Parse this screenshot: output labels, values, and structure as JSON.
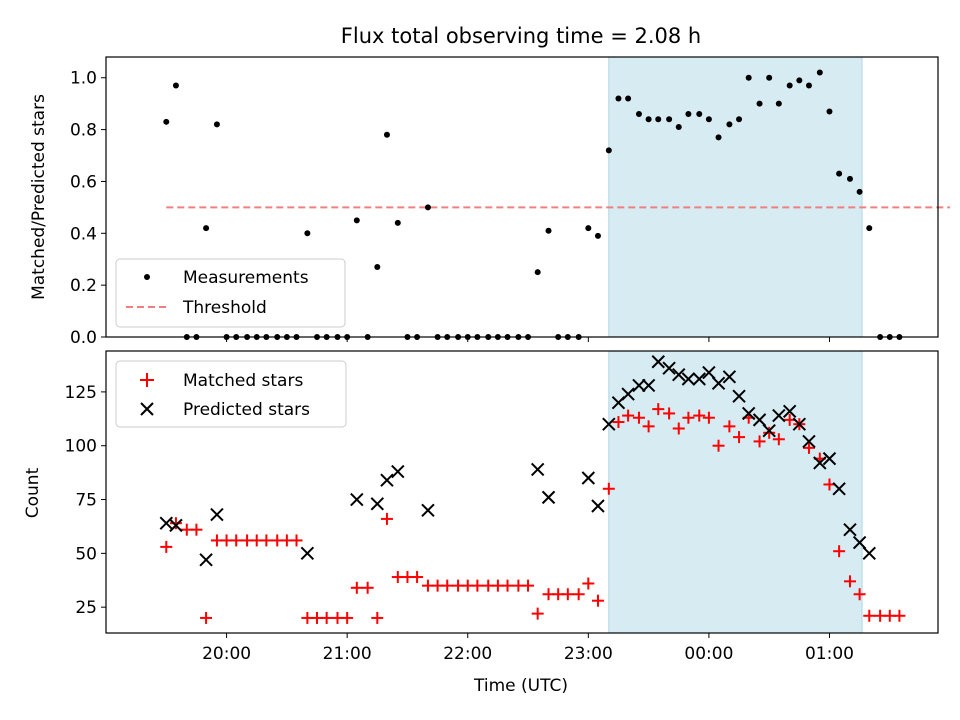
{
  "chart_data": [
    {
      "type": "scatter",
      "panel": "top",
      "title": "Flux total observing time = 2.08 h",
      "ylabel": "Matched/Predicted stars",
      "ylim": [
        0,
        1.08
      ],
      "yticks": [
        "0.0",
        "0.2",
        "0.4",
        "0.6",
        "0.8",
        "1.0"
      ],
      "xlim_hours": [
        19.0,
        25.9
      ],
      "highlight_span_hours": [
        23.17,
        25.27
      ],
      "legend": {
        "placement": "lower-left",
        "entries": [
          "Measurements",
          "Threshold"
        ]
      },
      "threshold": {
        "name": "Threshold",
        "value": 0.5,
        "x_start_hours": 19.5,
        "x_end_hours": 26.0,
        "color": "#f08080"
      },
      "series": [
        {
          "name": "Measurements",
          "color": "#000000",
          "points": [
            [
              19.5,
              0.83
            ],
            [
              19.58,
              0.97
            ],
            [
              19.67,
              0
            ],
            [
              19.75,
              0
            ],
            [
              19.83,
              0.42
            ],
            [
              19.92,
              0.82
            ],
            [
              20.0,
              0
            ],
            [
              20.08,
              0
            ],
            [
              20.17,
              0
            ],
            [
              20.25,
              0
            ],
            [
              20.33,
              0
            ],
            [
              20.42,
              0
            ],
            [
              20.5,
              0
            ],
            [
              20.58,
              0
            ],
            [
              20.67,
              0.4
            ],
            [
              20.75,
              0
            ],
            [
              20.83,
              0
            ],
            [
              20.92,
              0
            ],
            [
              21.0,
              0
            ],
            [
              21.08,
              0.45
            ],
            [
              21.17,
              0
            ],
            [
              21.25,
              0.27
            ],
            [
              21.33,
              0.78
            ],
            [
              21.42,
              0.44
            ],
            [
              21.5,
              0
            ],
            [
              21.58,
              0
            ],
            [
              21.67,
              0.5
            ],
            [
              21.75,
              0
            ],
            [
              21.83,
              0
            ],
            [
              21.92,
              0
            ],
            [
              22.0,
              0
            ],
            [
              22.08,
              0
            ],
            [
              22.17,
              0
            ],
            [
              22.25,
              0
            ],
            [
              22.33,
              0
            ],
            [
              22.42,
              0
            ],
            [
              22.5,
              0
            ],
            [
              22.58,
              0.25
            ],
            [
              22.67,
              0.41
            ],
            [
              22.75,
              0
            ],
            [
              22.83,
              0
            ],
            [
              22.92,
              0
            ],
            [
              23.0,
              0.42
            ],
            [
              23.08,
              0.39
            ],
            [
              23.17,
              0.72
            ],
            [
              23.25,
              0.92
            ],
            [
              23.33,
              0.92
            ],
            [
              23.42,
              0.86
            ],
            [
              23.5,
              0.84
            ],
            [
              23.58,
              0.84
            ],
            [
              23.67,
              0.84
            ],
            [
              23.75,
              0.81
            ],
            [
              23.83,
              0.86
            ],
            [
              23.92,
              0.86
            ],
            [
              24.0,
              0.84
            ],
            [
              24.08,
              0.77
            ],
            [
              24.17,
              0.82
            ],
            [
              24.25,
              0.84
            ],
            [
              24.33,
              1.0
            ],
            [
              24.42,
              0.9
            ],
            [
              24.5,
              1.0
            ],
            [
              24.58,
              0.9
            ],
            [
              24.67,
              0.97
            ],
            [
              24.75,
              0.99
            ],
            [
              24.83,
              0.97
            ],
            [
              24.92,
              1.02
            ],
            [
              25.0,
              0.87
            ],
            [
              25.08,
              0.63
            ],
            [
              25.17,
              0.61
            ],
            [
              25.25,
              0.56
            ],
            [
              25.33,
              0.42
            ],
            [
              25.42,
              0
            ],
            [
              25.5,
              0
            ],
            [
              25.58,
              0
            ]
          ]
        }
      ]
    },
    {
      "type": "scatter",
      "panel": "bottom",
      "xlabel": "Time (UTC)",
      "ylabel": "Count",
      "ylim": [
        13,
        144
      ],
      "yticks": [
        "25",
        "50",
        "75",
        "100",
        "125"
      ],
      "xlim_hours": [
        19.0,
        25.9
      ],
      "xticks": [
        "20:00",
        "21:00",
        "22:00",
        "23:00",
        "00:00",
        "01:00"
      ],
      "highlight_span_hours": [
        23.17,
        25.27
      ],
      "legend": {
        "placement": "upper-left",
        "entries": [
          "Matched stars",
          "Predicted stars"
        ]
      },
      "series": [
        {
          "name": "Matched stars",
          "marker": "plus",
          "color": "#ff0000",
          "points": [
            [
              19.5,
              53
            ],
            [
              19.58,
              64
            ],
            [
              19.67,
              61
            ],
            [
              19.75,
              61
            ],
            [
              19.83,
              20
            ],
            [
              19.92,
              56
            ],
            [
              20.0,
              56
            ],
            [
              20.08,
              56
            ],
            [
              20.17,
              56
            ],
            [
              20.25,
              56
            ],
            [
              20.33,
              56
            ],
            [
              20.42,
              56
            ],
            [
              20.5,
              56
            ],
            [
              20.58,
              56
            ],
            [
              20.67,
              20
            ],
            [
              20.75,
              20
            ],
            [
              20.83,
              20
            ],
            [
              20.92,
              20
            ],
            [
              21.0,
              20
            ],
            [
              21.08,
              34
            ],
            [
              21.17,
              34
            ],
            [
              21.25,
              20
            ],
            [
              21.33,
              66
            ],
            [
              21.42,
              39
            ],
            [
              21.5,
              39
            ],
            [
              21.58,
              39
            ],
            [
              21.67,
              35
            ],
            [
              21.75,
              35
            ],
            [
              21.83,
              35
            ],
            [
              21.92,
              35
            ],
            [
              22.0,
              35
            ],
            [
              22.08,
              35
            ],
            [
              22.17,
              35
            ],
            [
              22.25,
              35
            ],
            [
              22.33,
              35
            ],
            [
              22.42,
              35
            ],
            [
              22.5,
              35
            ],
            [
              22.58,
              22
            ],
            [
              22.67,
              31
            ],
            [
              22.75,
              31
            ],
            [
              22.83,
              31
            ],
            [
              22.92,
              31
            ],
            [
              23.0,
              36
            ],
            [
              23.08,
              28
            ],
            [
              23.17,
              80
            ],
            [
              23.25,
              111
            ],
            [
              23.33,
              114
            ],
            [
              23.42,
              113
            ],
            [
              23.5,
              109
            ],
            [
              23.58,
              117
            ],
            [
              23.67,
              115
            ],
            [
              23.75,
              108
            ],
            [
              23.83,
              113
            ],
            [
              23.92,
              114
            ],
            [
              24.0,
              113
            ],
            [
              24.08,
              100
            ],
            [
              24.17,
              109
            ],
            [
              24.25,
              104
            ],
            [
              24.33,
              113
            ],
            [
              24.42,
              102
            ],
            [
              24.5,
              106
            ],
            [
              24.58,
              103
            ],
            [
              24.67,
              112
            ],
            [
              24.75,
              110
            ],
            [
              24.83,
              99
            ],
            [
              24.92,
              94
            ],
            [
              25.0,
              82
            ],
            [
              25.08,
              51
            ],
            [
              25.17,
              37
            ],
            [
              25.25,
              31
            ],
            [
              25.33,
              21
            ],
            [
              25.42,
              21
            ],
            [
              25.5,
              21
            ],
            [
              25.58,
              21
            ]
          ]
        },
        {
          "name": "Predicted stars",
          "marker": "x",
          "color": "#000000",
          "points": [
            [
              19.5,
              64
            ],
            [
              19.58,
              63
            ],
            [
              19.83,
              47
            ],
            [
              19.92,
              68
            ],
            [
              20.67,
              50
            ],
            [
              21.08,
              75
            ],
            [
              21.25,
              73
            ],
            [
              21.33,
              84
            ],
            [
              21.42,
              88
            ],
            [
              21.67,
              70
            ],
            [
              22.58,
              89
            ],
            [
              22.67,
              76
            ],
            [
              23.0,
              85
            ],
            [
              23.08,
              72
            ],
            [
              23.17,
              110
            ],
            [
              23.25,
              120
            ],
            [
              23.33,
              124
            ],
            [
              23.42,
              128
            ],
            [
              23.5,
              128
            ],
            [
              23.58,
              139
            ],
            [
              23.67,
              136
            ],
            [
              23.75,
              133
            ],
            [
              23.83,
              131
            ],
            [
              23.92,
              131
            ],
            [
              24.0,
              134
            ],
            [
              24.08,
              129
            ],
            [
              24.17,
              132
            ],
            [
              24.25,
              123
            ],
            [
              24.33,
              115
            ],
            [
              24.42,
              112
            ],
            [
              24.5,
              107
            ],
            [
              24.58,
              114
            ],
            [
              24.67,
              116
            ],
            [
              24.75,
              110
            ],
            [
              24.83,
              102
            ],
            [
              24.92,
              92
            ],
            [
              25.0,
              94
            ],
            [
              25.08,
              80
            ],
            [
              25.17,
              61
            ],
            [
              25.25,
              55
            ],
            [
              25.33,
              50
            ]
          ]
        }
      ]
    }
  ]
}
